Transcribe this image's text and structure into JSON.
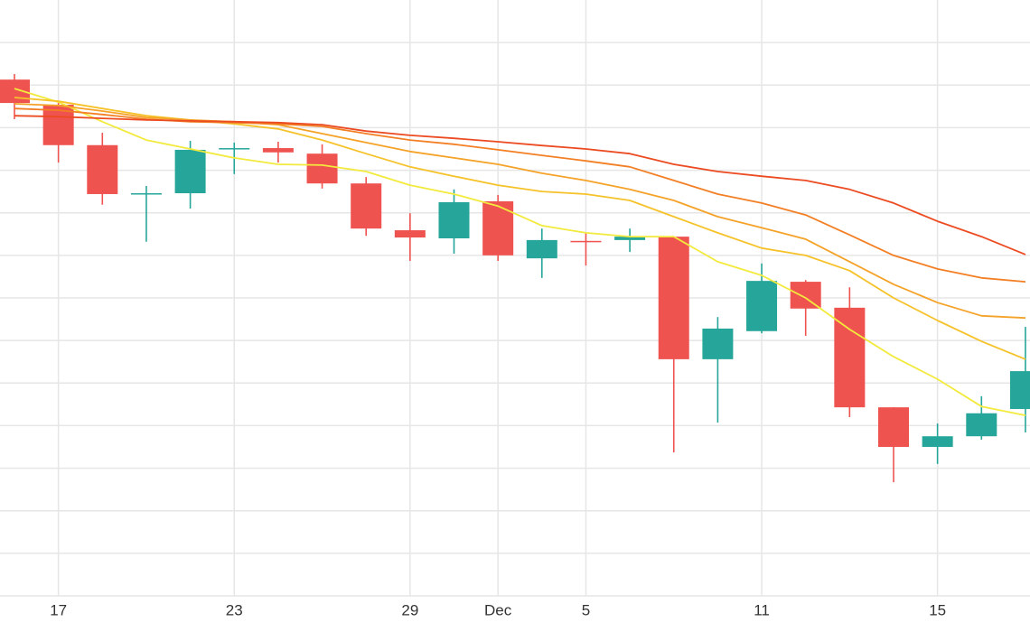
{
  "chart_data": {
    "type": "candlestick",
    "categories": [
      null,
      "17",
      null,
      null,
      null,
      "23",
      null,
      null,
      null,
      "29",
      null,
      "Dec",
      null,
      "5",
      null,
      null,
      null,
      "11",
      null,
      null,
      null,
      "15",
      null,
      null
    ],
    "open": [
      12.13,
      11.54,
      10.59,
      9.44,
      9.46,
      10.5,
      10.52,
      10.39,
      9.69,
      8.59,
      8.4,
      9.27,
      7.93,
      8.34,
      8.36,
      8.44,
      5.56,
      6.22,
      7.38,
      6.77,
      4.43,
      3.5,
      3.75,
      4.39
    ],
    "high": [
      12.26,
      11.62,
      10.88,
      9.63,
      10.69,
      10.65,
      10.67,
      10.61,
      9.84,
      8.99,
      9.55,
      9.42,
      8.63,
      8.53,
      8.63,
      8.44,
      6.55,
      7.81,
      7.42,
      7.25,
      4.43,
      4.05,
      4.69,
      6.32
    ],
    "low": [
      11.2,
      10.18,
      9.19,
      8.32,
      9.1,
      9.91,
      10.18,
      9.57,
      8.46,
      7.87,
      8.04,
      7.87,
      7.47,
      7.76,
      8.08,
      3.37,
      4.07,
      6.17,
      6.11,
      4.2,
      2.67,
      3.1,
      3.67,
      3.84
    ],
    "close": [
      11.58,
      10.59,
      9.44,
      9.46,
      10.48,
      10.52,
      10.42,
      9.69,
      8.63,
      8.42,
      9.25,
      8.0,
      8.36,
      8.32,
      8.44,
      5.56,
      6.28,
      7.4,
      6.75,
      4.43,
      3.5,
      3.75,
      4.29,
      5.28
    ],
    "up_color": "#26a69a",
    "down_color": "#ef5350",
    "lines": [
      {
        "color": "#f2ea3c",
        "values": [
          11.92,
          11.6,
          11.14,
          10.71,
          10.5,
          10.29,
          10.14,
          10.12,
          9.97,
          9.65,
          9.44,
          9.16,
          8.7,
          8.53,
          8.44,
          8.44,
          7.85,
          7.53,
          7.0,
          6.26,
          5.62,
          5.09,
          4.45,
          4.24
        ]
      },
      {
        "color": "#f6c22a",
        "values": [
          11.71,
          11.62,
          11.45,
          11.28,
          11.18,
          11.09,
          10.97,
          10.71,
          10.39,
          10.08,
          9.86,
          9.65,
          9.5,
          9.44,
          9.29,
          8.91,
          8.53,
          8.17,
          8.0,
          7.64,
          7.0,
          6.47,
          5.98,
          5.56
        ]
      },
      {
        "color": "#f5a228",
        "values": [
          11.56,
          11.52,
          11.39,
          11.24,
          11.18,
          11.14,
          11.07,
          10.86,
          10.65,
          10.44,
          10.29,
          10.14,
          9.93,
          9.76,
          9.55,
          9.29,
          8.91,
          8.65,
          8.38,
          7.85,
          7.32,
          6.89,
          6.58,
          6.53
        ]
      },
      {
        "color": "#f37f25",
        "values": [
          11.45,
          11.41,
          11.31,
          11.2,
          11.14,
          11.12,
          11.09,
          11.03,
          10.86,
          10.71,
          10.61,
          10.48,
          10.35,
          10.22,
          10.08,
          9.76,
          9.44,
          9.23,
          8.95,
          8.48,
          8.0,
          7.68,
          7.47,
          7.38
        ]
      },
      {
        "color": "#ec4b22",
        "values": [
          11.28,
          11.26,
          11.22,
          11.18,
          11.16,
          11.14,
          11.12,
          11.07,
          10.92,
          10.82,
          10.75,
          10.67,
          10.58,
          10.5,
          10.39,
          10.14,
          9.97,
          9.86,
          9.76,
          9.55,
          9.23,
          8.8,
          8.44,
          8.02
        ]
      }
    ],
    "ylim": [
      0,
      14
    ],
    "yticks": [
      0,
      1,
      2,
      3,
      4,
      5,
      6,
      7,
      8,
      9,
      10,
      11,
      12,
      13
    ],
    "ytick_labels_shown": false,
    "grid": true
  }
}
